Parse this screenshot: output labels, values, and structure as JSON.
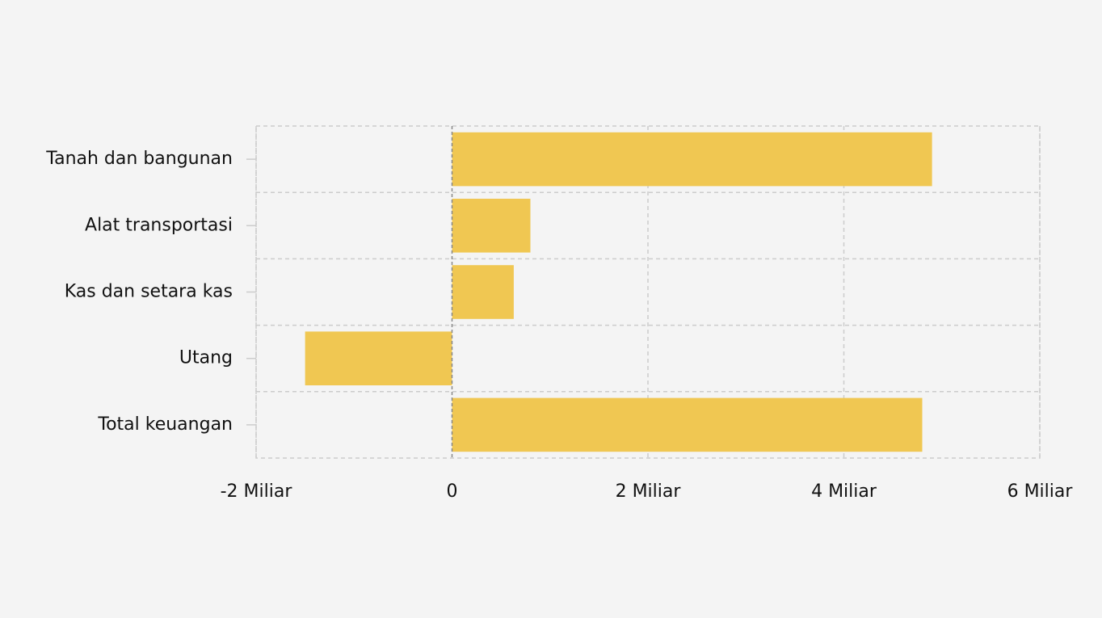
{
  "chart_data": {
    "type": "bar",
    "orientation": "horizontal",
    "title": "",
    "xlabel": "",
    "ylabel": "",
    "categories": [
      "Tanah dan bangunan",
      "Alat transportasi",
      "Kas dan setara kas",
      "Utang",
      "Total keuangan"
    ],
    "values": [
      4900000000,
      800000000,
      630000000,
      -1500000000,
      4800000000
    ],
    "xlim": [
      -2000000000,
      6000000000
    ],
    "x_ticks": [
      -2000000000,
      0,
      2000000000,
      4000000000,
      6000000000
    ],
    "x_tick_labels": [
      "-2 Miliar",
      "0",
      "2 Miliar",
      "4 Miliar",
      "6 Miliar"
    ],
    "grid": true,
    "legend": "none",
    "bar_color": "#f0c752",
    "zero_line_color": "#888888",
    "grid_color": "#cccccc"
  }
}
